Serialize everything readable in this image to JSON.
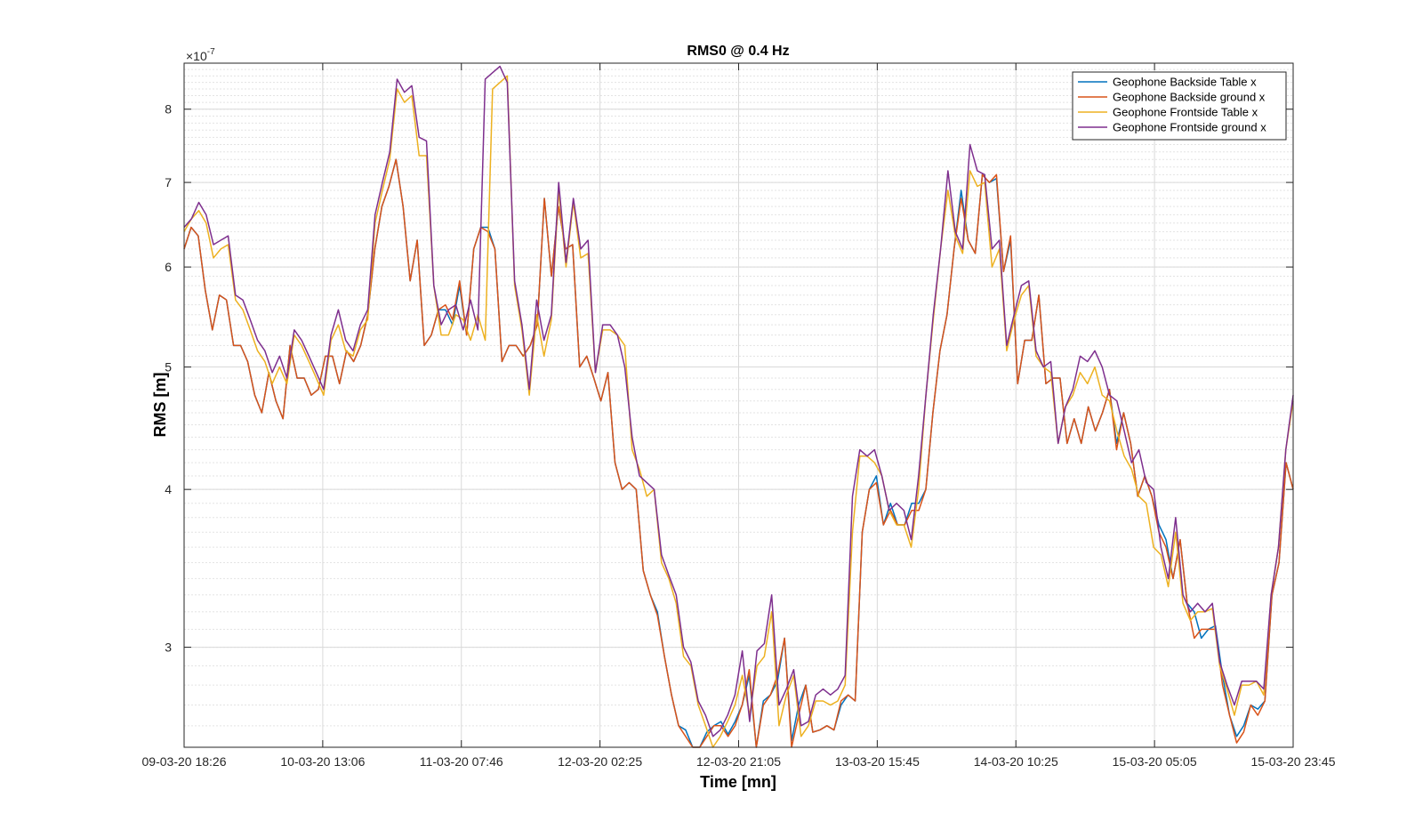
{
  "chart_data": {
    "type": "line",
    "title": "RMS0 @ 0.4 Hz",
    "xlabel": "Time [mn]",
    "ylabel": "RMS [m]",
    "y_exponent_label": "×10",
    "y_exponent_power": "-7",
    "y_scale": "log",
    "ylim": [
      2.5,
      8.7
    ],
    "y_ticks": [
      {
        "value": 3,
        "label": "3"
      },
      {
        "value": 4,
        "label": "4"
      },
      {
        "value": 5,
        "label": "5"
      },
      {
        "value": 6,
        "label": "6"
      },
      {
        "value": 7,
        "label": "7"
      },
      {
        "value": 8,
        "label": "8"
      }
    ],
    "x_ticks": [
      "09-03-20 18:26",
      "10-03-20 13:06",
      "11-03-20 07:46",
      "12-03-20 02:25",
      "12-03-20 21:05",
      "13-03-20 15:45",
      "14-03-20 10:25",
      "15-03-20 05:05",
      "15-03-20 23:45"
    ],
    "grid": true,
    "legend_position": "top-right",
    "series": [
      {
        "name": "Geophone Backside Table x",
        "color": "#0072BD",
        "values": [
          6.2,
          6.45,
          6.35,
          5.75,
          5.35,
          5.7,
          5.65,
          5.2,
          5.2,
          5.05,
          4.75,
          4.6,
          4.95,
          4.7,
          4.55,
          5.2,
          4.9,
          4.9,
          4.75,
          4.8,
          5.1,
          5.1,
          4.85,
          5.15,
          5.05,
          5.2,
          5.5,
          6.2,
          6.7,
          6.95,
          7.3,
          6.7,
          5.85,
          6.3,
          5.2,
          5.3,
          5.55,
          5.55,
          5.4,
          5.8,
          5.3,
          6.2,
          6.45,
          6.45,
          6.2,
          5.05,
          5.2,
          5.2,
          5.1,
          5.2,
          5.4,
          6.8,
          5.9,
          6.7,
          6.2,
          6.25,
          5.0,
          5.1,
          4.9,
          4.7,
          4.95,
          4.2,
          4.0,
          4.05,
          4.0,
          3.45,
          3.3,
          3.2,
          2.95,
          2.75,
          2.6,
          2.58,
          2.48,
          2.5,
          2.57,
          2.6,
          2.62,
          2.56,
          2.62,
          2.7,
          2.85,
          2.5,
          2.72,
          2.75,
          2.82,
          3.05,
          2.53,
          2.7,
          2.8,
          2.57,
          2.58,
          2.6,
          2.58,
          2.7,
          2.75,
          2.72,
          3.7,
          4.0,
          4.1,
          3.75,
          3.9,
          3.75,
          3.75,
          3.9,
          3.9,
          4.0,
          4.6,
          5.15,
          5.5,
          6.2,
          6.9,
          6.3,
          6.15,
          7.1,
          7.0,
          7.05,
          5.95,
          6.3,
          4.85,
          5.25,
          5.25,
          5.7,
          4.85,
          4.9,
          4.9,
          4.35,
          4.55,
          4.35,
          4.65,
          4.45,
          4.6,
          4.8,
          4.35,
          4.6,
          4.35,
          3.95,
          4.1,
          3.95,
          3.75,
          3.65,
          3.4,
          3.65,
          3.25,
          3.2,
          3.05,
          3.1,
          3.12,
          2.85,
          2.65,
          2.55,
          2.6,
          2.7,
          2.68,
          2.72,
          3.3,
          3.5,
          4.2,
          4.0
        ]
      },
      {
        "name": "Geophone Backside ground x",
        "color": "#D95319",
        "values": [
          6.2,
          6.45,
          6.35,
          5.75,
          5.35,
          5.7,
          5.65,
          5.2,
          5.2,
          5.05,
          4.75,
          4.6,
          4.95,
          4.7,
          4.55,
          5.2,
          4.9,
          4.9,
          4.75,
          4.8,
          5.1,
          5.1,
          4.85,
          5.15,
          5.05,
          5.2,
          5.5,
          6.2,
          6.7,
          6.95,
          7.3,
          6.7,
          5.85,
          6.3,
          5.2,
          5.3,
          5.55,
          5.6,
          5.45,
          5.85,
          5.3,
          6.2,
          6.45,
          6.4,
          6.2,
          5.05,
          5.2,
          5.2,
          5.1,
          5.2,
          5.4,
          6.8,
          5.9,
          6.7,
          6.2,
          6.25,
          5.0,
          5.1,
          4.9,
          4.7,
          4.95,
          4.2,
          4.0,
          4.05,
          4.0,
          3.45,
          3.3,
          3.18,
          2.95,
          2.75,
          2.6,
          2.55,
          2.45,
          2.48,
          2.55,
          2.6,
          2.6,
          2.55,
          2.6,
          2.7,
          2.88,
          2.48,
          2.7,
          2.75,
          2.85,
          3.05,
          2.5,
          2.65,
          2.8,
          2.57,
          2.58,
          2.6,
          2.58,
          2.72,
          2.75,
          2.72,
          3.7,
          4.0,
          4.05,
          3.75,
          3.85,
          3.75,
          3.75,
          3.85,
          3.85,
          4.0,
          4.6,
          5.15,
          5.5,
          6.2,
          6.8,
          6.3,
          6.15,
          7.1,
          7.0,
          7.1,
          5.95,
          6.35,
          4.85,
          5.25,
          5.25,
          5.7,
          4.85,
          4.9,
          4.9,
          4.35,
          4.55,
          4.35,
          4.65,
          4.45,
          4.6,
          4.8,
          4.3,
          4.6,
          4.35,
          3.95,
          4.1,
          3.95,
          3.7,
          3.6,
          3.4,
          3.65,
          3.25,
          3.05,
          3.1,
          3.1,
          3.1,
          2.8,
          2.65,
          2.52,
          2.57,
          2.7,
          2.65,
          2.72,
          3.3,
          3.5,
          4.2,
          4.0
        ]
      },
      {
        "name": "Geophone Frontside Table x",
        "color": "#EDB120",
        "values": [
          6.4,
          6.55,
          6.65,
          6.5,
          6.1,
          6.2,
          6.25,
          5.65,
          5.55,
          5.35,
          5.15,
          5.05,
          4.85,
          5.0,
          4.85,
          5.3,
          5.2,
          5.05,
          4.9,
          4.75,
          5.25,
          5.4,
          5.15,
          5.1,
          5.35,
          5.45,
          6.5,
          6.9,
          7.3,
          8.3,
          8.1,
          8.2,
          7.35,
          7.35,
          5.8,
          5.3,
          5.3,
          5.5,
          5.45,
          5.25,
          5.5,
          5.25,
          8.3,
          8.4,
          8.5,
          5.8,
          5.35,
          4.75,
          5.5,
          5.1,
          5.45,
          6.9,
          6.0,
          6.75,
          6.1,
          6.15,
          4.95,
          5.35,
          5.35,
          5.3,
          5.2,
          4.3,
          4.15,
          3.95,
          4.0,
          3.5,
          3.4,
          3.25,
          2.95,
          2.9,
          2.7,
          2.6,
          2.5,
          2.55,
          2.62,
          2.7,
          2.85,
          2.65,
          2.9,
          2.95,
          3.2,
          2.6,
          2.75,
          2.85,
          2.55,
          2.6,
          2.72,
          2.72,
          2.7,
          2.72,
          2.8,
          3.7,
          4.25,
          4.25,
          4.2,
          4.1,
          3.85,
          3.75,
          3.75,
          3.6,
          4.0,
          4.75,
          5.45,
          6.2,
          6.9,
          6.35,
          6.15,
          7.15,
          6.95,
          7.0,
          6.0,
          6.2,
          5.15,
          5.45,
          5.7,
          5.8,
          5.1,
          5.0,
          4.95,
          4.35,
          4.65,
          4.75,
          4.95,
          4.85,
          5.0,
          4.75,
          4.7,
          4.45,
          4.25,
          4.15,
          3.95,
          3.9,
          3.6,
          3.55,
          3.35,
          3.7,
          3.25,
          3.15,
          3.2,
          3.2,
          3.22,
          2.9,
          2.78,
          2.65,
          2.8,
          2.8,
          2.82,
          2.75,
          3.3,
          3.6,
          4.3,
          4.7
        ]
      },
      {
        "name": "Geophone Frontside ground x",
        "color": "#7E2F8E",
        "values": [
          6.45,
          6.55,
          6.75,
          6.6,
          6.25,
          6.3,
          6.35,
          5.7,
          5.65,
          5.45,
          5.25,
          5.15,
          4.95,
          5.1,
          4.9,
          5.35,
          5.25,
          5.1,
          4.95,
          4.8,
          5.3,
          5.55,
          5.25,
          5.15,
          5.4,
          5.55,
          6.6,
          7.0,
          7.4,
          8.45,
          8.25,
          8.35,
          7.6,
          7.55,
          5.8,
          5.4,
          5.55,
          5.6,
          5.35,
          5.65,
          5.35,
          8.45,
          8.55,
          8.65,
          8.4,
          5.85,
          5.4,
          4.8,
          5.65,
          5.25,
          5.5,
          7.0,
          6.05,
          6.8,
          6.2,
          6.3,
          4.95,
          5.4,
          5.4,
          5.3,
          5.0,
          4.4,
          4.1,
          4.05,
          4.0,
          3.55,
          3.42,
          3.3,
          3.0,
          2.92,
          2.72,
          2.65,
          2.55,
          2.58,
          2.65,
          2.75,
          2.98,
          2.62,
          2.98,
          3.02,
          3.3,
          2.7,
          2.78,
          2.88,
          2.6,
          2.62,
          2.75,
          2.78,
          2.75,
          2.78,
          2.85,
          3.95,
          4.3,
          4.25,
          4.3,
          4.1,
          3.85,
          3.9,
          3.85,
          3.65,
          4.1,
          4.75,
          5.5,
          6.2,
          7.15,
          6.4,
          6.2,
          7.5,
          7.15,
          7.1,
          6.2,
          6.3,
          5.2,
          5.5,
          5.8,
          5.85,
          5.15,
          5.0,
          5.05,
          4.35,
          4.65,
          4.8,
          5.1,
          5.05,
          5.15,
          5.0,
          4.75,
          4.7,
          4.45,
          4.2,
          4.3,
          4.05,
          4.0,
          3.6,
          3.4,
          3.8,
          3.3,
          3.2,
          3.25,
          3.2,
          3.25,
          2.92,
          2.8,
          2.7,
          2.82,
          2.82,
          2.82,
          2.78,
          3.3,
          3.6,
          4.3,
          4.75
        ]
      }
    ]
  }
}
